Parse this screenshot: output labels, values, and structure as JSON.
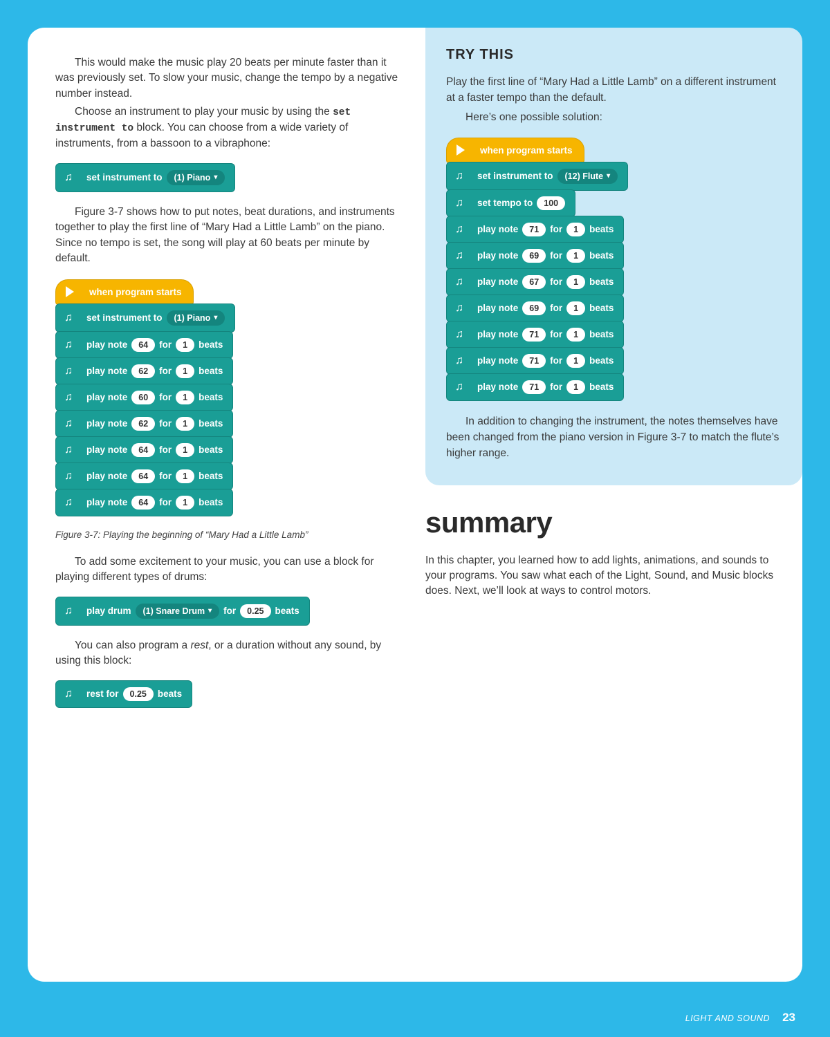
{
  "left": {
    "p1": "This would make the music play 20 beats per minute faster than it was previously set. To slow your music, change the tempo by a negative number instead.",
    "p2a": "Choose an instrument to play your music by using the ",
    "p2code": "set instrument to",
    "p2b": " block. You can choose from a wide variety of instruments, from a bassoon to a vibraphone:",
    "block1": {
      "label": "set instrument to",
      "value": "(1) Piano"
    },
    "p3": "Figure 3-7 shows how to put notes, beat durations, and instruments together to play the first line of “Mary Had a Little Lamb” on the piano. Since no tempo is set, the song will play at 60 beats per minute by default.",
    "stack1": {
      "hat": "when program starts",
      "instr": {
        "label": "set instrument to",
        "value": "(1) Piano"
      },
      "play": "play note",
      "for": "for",
      "beats": "beats",
      "notes": [
        {
          "n": "64",
          "b": "1"
        },
        {
          "n": "62",
          "b": "1"
        },
        {
          "n": "60",
          "b": "1"
        },
        {
          "n": "62",
          "b": "1"
        },
        {
          "n": "64",
          "b": "1"
        },
        {
          "n": "64",
          "b": "1"
        },
        {
          "n": "64",
          "b": "1"
        }
      ]
    },
    "caption1": "Figure 3-7: Playing the beginning of “Mary Had a Little Lamb”",
    "p4": "To add some excitement to your music, you can use a block for playing different types of drums:",
    "drum": {
      "label1": "play drum",
      "value": "(1) Snare Drum",
      "label2": "for",
      "dur": "0.25",
      "label3": "beats"
    },
    "p5a": "You can also program a ",
    "p5i": "rest",
    "p5b": ", or a duration without any sound, by using this block:",
    "rest": {
      "label1": "rest for",
      "dur": "0.25",
      "label2": "beats"
    }
  },
  "right": {
    "try_title": "TRY THIS",
    "try_p1": "Play the first line of “Mary Had a Little Lamb” on a different instrument at a faster tempo than the default.",
    "try_p2": "Here’s one possible solution:",
    "stack2": {
      "hat": "when program starts",
      "instr": {
        "label": "set instrument to",
        "value": "(12) Flute"
      },
      "tempo": {
        "label": "set tempo to",
        "value": "100"
      },
      "play": "play note",
      "for": "for",
      "beats": "beats",
      "notes": [
        {
          "n": "71",
          "b": "1"
        },
        {
          "n": "69",
          "b": "1"
        },
        {
          "n": "67",
          "b": "1"
        },
        {
          "n": "69",
          "b": "1"
        },
        {
          "n": "71",
          "b": "1"
        },
        {
          "n": "71",
          "b": "1"
        },
        {
          "n": "71",
          "b": "1"
        }
      ]
    },
    "try_p3": "In addition to changing the instrument, the notes themselves have been changed from the piano version in Figure 3-7 to match the flute’s higher range.",
    "summary_title": "summary",
    "summary_p": "In this chapter, you learned how to add lights, animations, and sounds to your programs. You saw what each of the Light, Sound, and Music blocks does. Next, we’ll look at ways to control motors."
  },
  "footer": {
    "chapter": "LIGHT AND SOUND",
    "page": "23"
  }
}
